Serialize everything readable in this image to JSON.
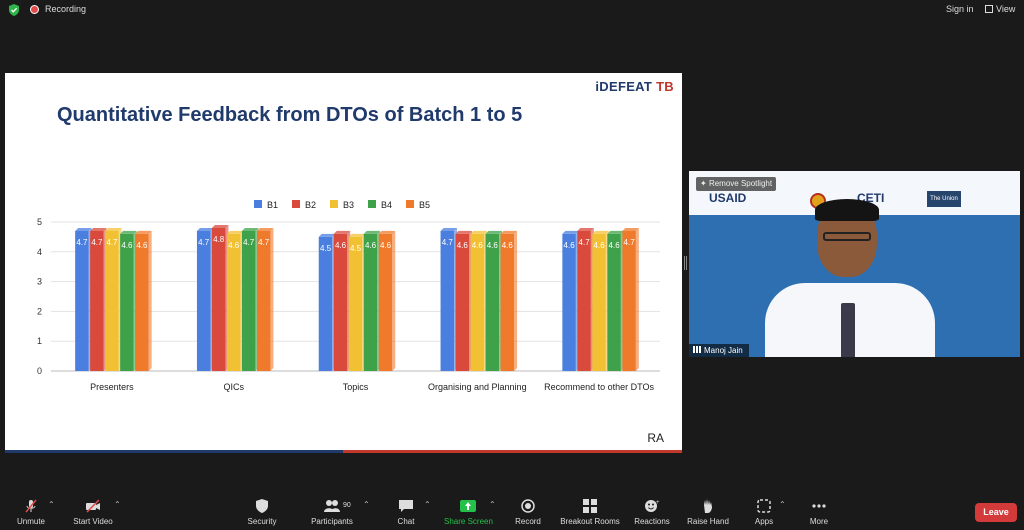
{
  "topbar": {
    "recording_label": "Recording",
    "signin_label": "Sign in",
    "view_label": "View"
  },
  "slide": {
    "brand_prefix": "iDEFEAT",
    "brand_suffix": "TB",
    "title": "Quantitative Feedback from DTOs of Batch 1 to 5",
    "footer": "RA"
  },
  "chart_data": {
    "type": "bar",
    "categories": [
      "Presenters",
      "QICs",
      "Topics",
      "Organising and Planning",
      "Recommend to other DTOs"
    ],
    "series": [
      {
        "name": "B1",
        "color": "#4a7fe0",
        "values": [
          4.7,
          4.7,
          4.5,
          4.7,
          4.6
        ]
      },
      {
        "name": "B2",
        "color": "#d94a3d",
        "values": [
          4.7,
          4.8,
          4.6,
          4.6,
          4.7
        ]
      },
      {
        "name": "B3",
        "color": "#f2c033",
        "values": [
          4.7,
          4.6,
          4.5,
          4.6,
          4.6
        ]
      },
      {
        "name": "B4",
        "color": "#3fa24a",
        "values": [
          4.6,
          4.7,
          4.6,
          4.6,
          4.6
        ]
      },
      {
        "name": "B5",
        "color": "#f07a2b",
        "values": [
          4.6,
          4.7,
          4.6,
          4.6,
          4.7
        ]
      }
    ],
    "ylim": [
      0,
      5
    ],
    "yticks": [
      0,
      1,
      2,
      3,
      4,
      5
    ],
    "grid": true,
    "legend": "top-center"
  },
  "video": {
    "spotlight_label": "Remove Spotlight",
    "participant_name": "Manoj Jain",
    "logos": {
      "usaid": "USAID",
      "ceti": "CETI",
      "union": "The Union"
    }
  },
  "toolbar": {
    "unmute": "Unmute",
    "start_video": "Start Video",
    "security": "Security",
    "participants": "Participants",
    "participants_count": "90",
    "chat": "Chat",
    "share_screen": "Share Screen",
    "record": "Record",
    "breakout_rooms": "Breakout Rooms",
    "reactions": "Reactions",
    "raise_hand": "Raise Hand",
    "apps": "Apps",
    "more": "More",
    "leave": "Leave"
  },
  "colors": {
    "share_green": "#25c04a",
    "leave_red": "#d33b3b",
    "title_navy": "#1f3a6b"
  }
}
